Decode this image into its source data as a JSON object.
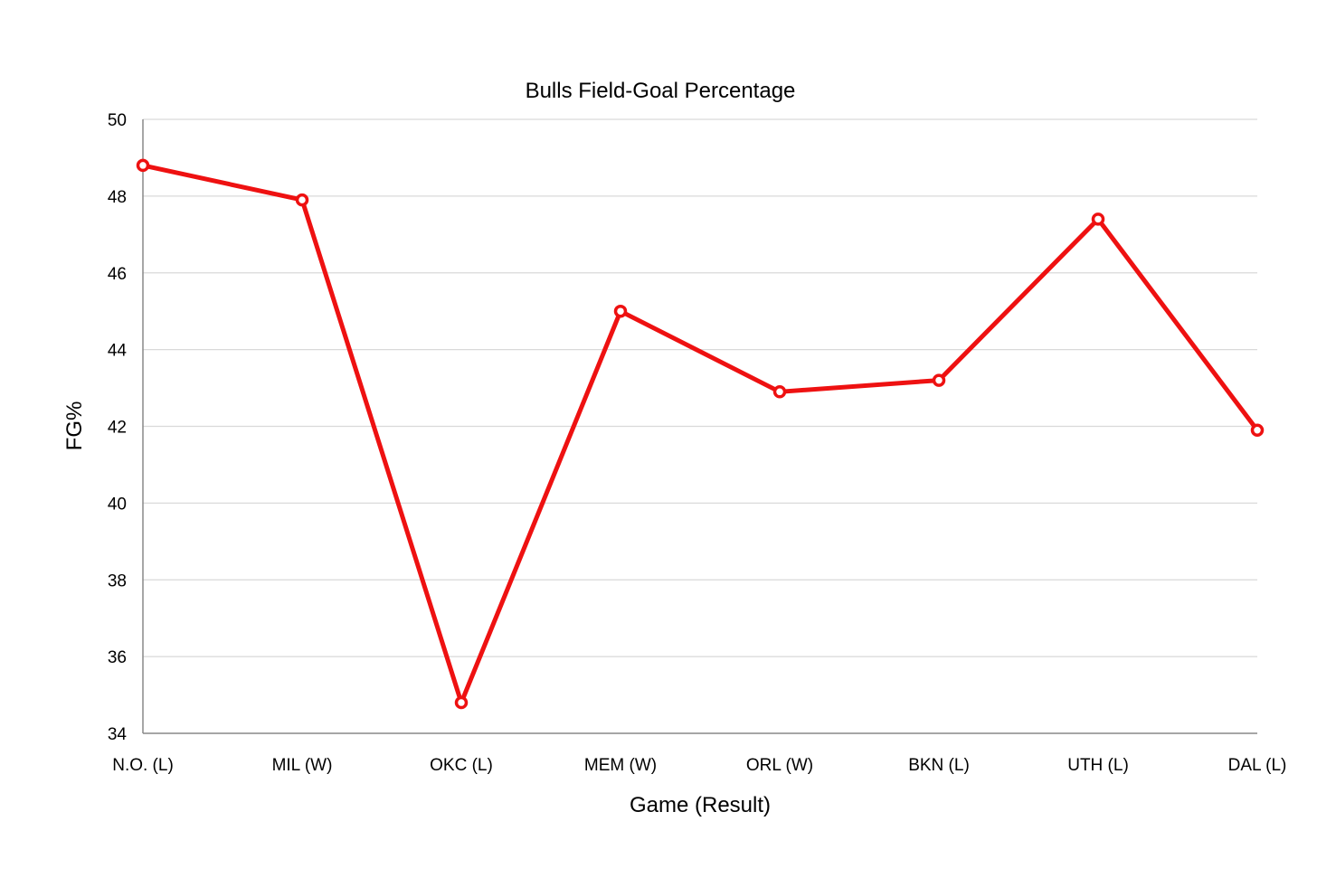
{
  "chart_data": {
    "type": "line",
    "title": "Bulls Field-Goal Percentage",
    "xlabel": "Game (Result)",
    "ylabel": "FG%",
    "categories": [
      "N.O. (L)",
      "MIL (W)",
      "OKC (L)",
      "MEM (W)",
      "ORL (W)",
      "BKN (L)",
      "UTH (L)",
      "DAL (L)"
    ],
    "series": [
      {
        "values": [
          48.8,
          47.9,
          34.8,
          45.0,
          42.9,
          43.2,
          47.4,
          41.9
        ],
        "color": "#ee1111"
      }
    ],
    "ylim": [
      34,
      50
    ],
    "yticks": [
      34,
      36,
      38,
      40,
      42,
      44,
      46,
      48,
      50
    ],
    "grid": true,
    "legend": "none"
  }
}
